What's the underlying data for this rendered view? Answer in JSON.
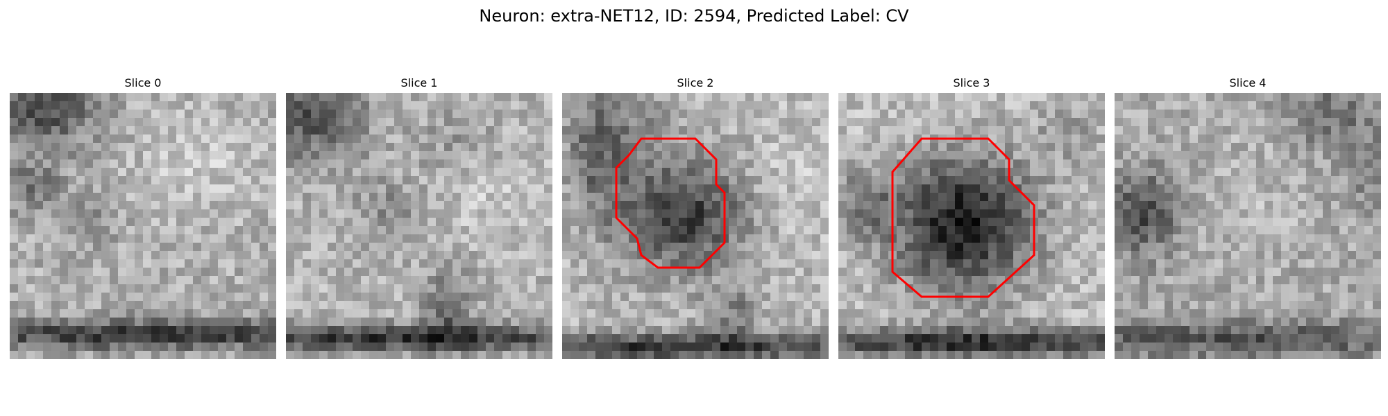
{
  "figure": {
    "title": "Neuron: extra-NET12, ID: 2594, Predicted Label: CV",
    "slices": [
      {
        "title": "Slice 0",
        "has_contour": false
      },
      {
        "title": "Slice 1",
        "has_contour": false
      },
      {
        "title": "Slice 2",
        "has_contour": true
      },
      {
        "title": "Slice 3",
        "has_contour": true
      },
      {
        "title": "Slice 4",
        "has_contour": false
      }
    ],
    "contour_color": "#ff0000",
    "colormap": "gray"
  }
}
